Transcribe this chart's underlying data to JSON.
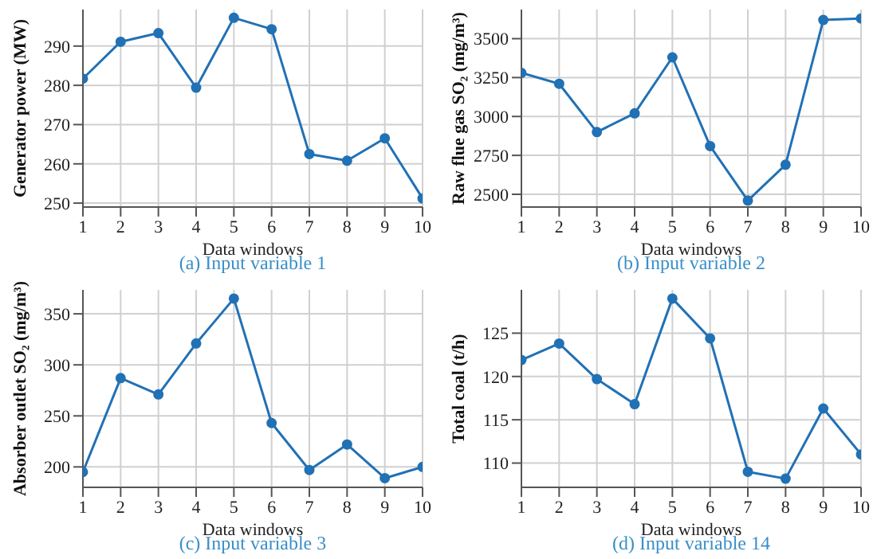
{
  "chart_data": [
    {
      "type": "line",
      "title": "(a) Input variable 1",
      "xlabel": "Data windows",
      "ylabel": "Generator power (MW)",
      "x": [
        1,
        2,
        3,
        4,
        5,
        6,
        7,
        8,
        9,
        10
      ],
      "series": [
        {
          "color": "#2171b5",
          "values": [
            281.7,
            291.1,
            293.3,
            279.4,
            297.2,
            294.3,
            262.5,
            260.8,
            266.5,
            251.2
          ]
        }
      ],
      "xlim": [
        1,
        10
      ],
      "xticks": [
        1,
        2,
        3,
        4,
        5,
        6,
        7,
        8,
        9,
        10
      ],
      "ylim": [
        249,
        299.3
      ],
      "yticks": [
        250,
        260,
        270,
        280,
        290
      ],
      "grid": true,
      "marker": "circle"
    },
    {
      "type": "line",
      "title": "(b) Input variable 2",
      "xlabel": "Data windows",
      "ylabel": "Raw flue gas SO₂ (mg/m³)",
      "x": [
        1,
        2,
        3,
        4,
        5,
        6,
        7,
        8,
        9,
        10
      ],
      "series": [
        {
          "color": "#2171b5",
          "values": [
            3280,
            3210,
            2900,
            3020,
            3380,
            2810,
            2460,
            2690,
            3620,
            3630
          ]
        }
      ],
      "xlim": [
        1,
        10
      ],
      "xticks": [
        1,
        2,
        3,
        4,
        5,
        6,
        7,
        8,
        9,
        10
      ],
      "ylim": [
        2418,
        3687
      ],
      "yticks": [
        2500,
        2750,
        3000,
        3250,
        3500
      ],
      "grid": true,
      "marker": "circle"
    },
    {
      "type": "line",
      "title": "(c) Input variable 3",
      "xlabel": "Data windows",
      "ylabel": "Absorber outlet SO₂ (mg/m³)",
      "x": [
        1,
        2,
        3,
        4,
        5,
        6,
        7,
        8,
        9,
        10
      ],
      "series": [
        {
          "color": "#2171b5",
          "values": [
            195,
            287,
            271,
            321,
            365,
            243,
            197,
            222,
            189,
            200
          ]
        }
      ],
      "xlim": [
        1,
        10
      ],
      "xticks": [
        1,
        2,
        3,
        4,
        5,
        6,
        7,
        8,
        9,
        10
      ],
      "ylim": [
        180,
        373.5
      ],
      "yticks": [
        200,
        250,
        300,
        350
      ],
      "grid": true,
      "marker": "circle"
    },
    {
      "type": "line",
      "title": "(d) Input variable 14",
      "xlabel": "Data windows",
      "ylabel": "Total coal (t/h)",
      "x": [
        1,
        2,
        3,
        4,
        5,
        6,
        7,
        8,
        9,
        10
      ],
      "series": [
        {
          "color": "#2171b5",
          "values": [
            121.9,
            123.8,
            119.7,
            116.8,
            129,
            124.4,
            109,
            108.2,
            116.3,
            111
          ]
        }
      ],
      "xlim": [
        1,
        10
      ],
      "xticks": [
        1,
        2,
        3,
        4,
        5,
        6,
        7,
        8,
        9,
        10
      ],
      "ylim": [
        107.2,
        130
      ],
      "yticks": [
        110,
        115,
        120,
        125
      ],
      "grid": true,
      "marker": "circle"
    }
  ]
}
